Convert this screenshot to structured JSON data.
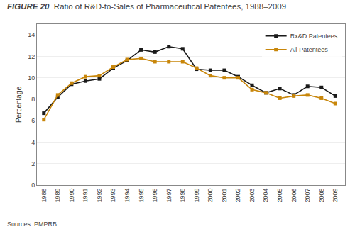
{
  "chart_data": {
    "type": "line",
    "title": "FIGURE 20",
    "subtitle": "Ratio of R&D-to-Sales of Pharmaceutical Patentees, 1988–2009",
    "y_label": "Percentage",
    "x": [
      1988,
      1989,
      1990,
      1991,
      1992,
      1993,
      1994,
      1995,
      1996,
      1997,
      1998,
      1999,
      2000,
      2001,
      2002,
      2003,
      2004,
      2005,
      2006,
      2007,
      2008,
      2009
    ],
    "series": [
      {
        "name": "Rx&D Patentees",
        "color": "#1a1a1a",
        "values": [
          6.7,
          8.2,
          9.4,
          9.7,
          9.9,
          10.9,
          11.6,
          12.6,
          12.4,
          12.9,
          12.7,
          10.8,
          10.7,
          10.7,
          10.1,
          9.3,
          8.6,
          9.0,
          8.4,
          9.2,
          9.1,
          8.3
        ]
      },
      {
        "name": "All Patentees",
        "color": "#c8860a",
        "values": [
          6.1,
          8.4,
          9.5,
          10.1,
          10.2,
          11.0,
          11.7,
          11.8,
          11.5,
          11.5,
          11.5,
          10.9,
          10.2,
          10.0,
          10.0,
          8.9,
          8.6,
          8.1,
          8.3,
          8.4,
          8.1,
          7.6
        ]
      }
    ],
    "xlim": [
      1987.5,
      2009.7
    ],
    "xticks": [
      1988,
      1989,
      1990,
      1991,
      1992,
      1993,
      1994,
      1995,
      1996,
      1997,
      1998,
      1999,
      2000,
      2001,
      2002,
      2003,
      2004,
      2005,
      2006,
      2007,
      2008,
      2009
    ],
    "ylim": [
      0,
      15
    ],
    "yticks": [
      0,
      2,
      4,
      6,
      8,
      10,
      12,
      14
    ],
    "grid": true,
    "legend": "upper right",
    "marker": "square",
    "line_style": "solid",
    "annotations": [
      "Sources: PMPRB"
    ]
  }
}
